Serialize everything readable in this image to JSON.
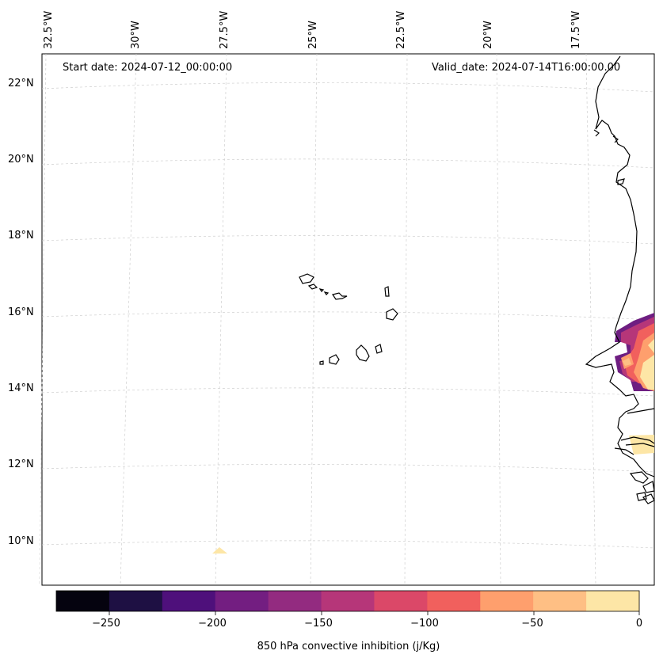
{
  "map": {
    "start_date": "Start date: 2024-07-12_00:00:00",
    "valid_date": "Valid_date: 2024-07-14T16:00:00.00",
    "lon_labels": [
      "32.5°W",
      "30°W",
      "27.5°W",
      "25°W",
      "22.5°W",
      "20°W",
      "17.5°W"
    ],
    "lat_labels": [
      "22°N",
      "20°N",
      "18°N",
      "16°N",
      "14°N",
      "12°N",
      "10°N"
    ]
  },
  "colorbar": {
    "label": "850 hPa convective inhibition (j/Kg)",
    "ticks": [
      "−250",
      "−200",
      "−150",
      "−100",
      "−50",
      "0"
    ],
    "colors": [
      "#05030f",
      "#1e1043",
      "#4e107b",
      "#731e81",
      "#932b80",
      "#b63679",
      "#db4868",
      "#f1605d",
      "#fe9f6d",
      "#febf84",
      "#fde6a6"
    ]
  }
}
